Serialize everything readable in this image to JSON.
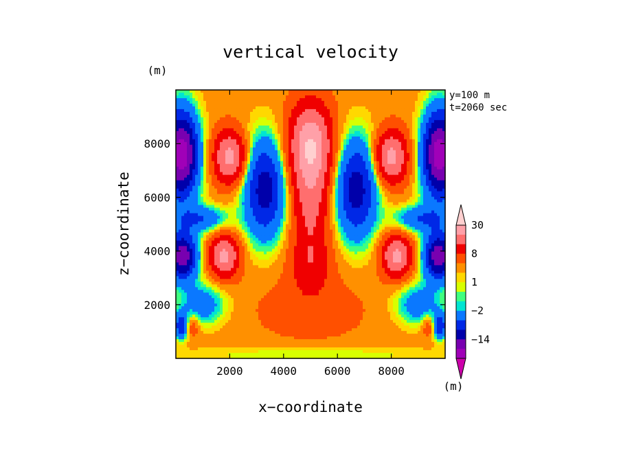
{
  "chart_data": {
    "type": "heatmap",
    "title": "vertical velocity",
    "xlabel": "x−coordinate",
    "ylabel": "z−coordinate",
    "y_unit": "(m)",
    "colorbar_unit": "(m)",
    "annotations": [
      "y=100 m",
      "t=2060 sec"
    ],
    "xlim": [
      0,
      10000
    ],
    "ylim": [
      0,
      10000
    ],
    "x_ticks": [
      2000,
      4000,
      6000,
      8000
    ],
    "x_tick_labels": [
      "2000",
      "4000",
      "6000",
      "8000"
    ],
    "y_ticks": [
      2000,
      4000,
      6000,
      8000
    ],
    "y_tick_labels": [
      "2000",
      "4000",
      "6000",
      "8000"
    ],
    "colorbar": {
      "levels": [
        -22,
        -18,
        -14,
        -10,
        -6,
        -2,
        -1,
        0,
        1,
        2,
        4,
        8,
        14,
        22,
        30
      ],
      "colors": [
        "#cc00aa",
        "#a000b8",
        "#7800b0",
        "#0000aa",
        "#0028e6",
        "#0a78ff",
        "#00e5d2",
        "#40ff80",
        "#d8ff00",
        "#ffd800",
        "#ff9000",
        "#ff5000",
        "#f00000",
        "#ff6e6e",
        "#ffa0a8",
        "#ffd0d0"
      ],
      "tick_values": [
        30,
        8,
        1,
        -2,
        -14
      ],
      "tick_labels": [
        "30",
        "8",
        "1",
        "−2",
        "−14"
      ]
    },
    "field_features": [
      {
        "x": 5000,
        "z": 7500,
        "w": 30,
        "note": "central updraft core"
      },
      {
        "x": 5000,
        "z": 3500,
        "w": 12,
        "note": "central updraft stem"
      },
      {
        "x": 2000,
        "z": 7500,
        "w": 18,
        "note": "upper left updraft"
      },
      {
        "x": 8000,
        "z": 7500,
        "w": 18,
        "note": "upper right updraft"
      },
      {
        "x": 1800,
        "z": 3800,
        "w": 18,
        "note": "mid left updraft"
      },
      {
        "x": 8200,
        "z": 3800,
        "w": 18,
        "note": "mid right updraft"
      },
      {
        "x": 3300,
        "z": 6300,
        "w": -12,
        "note": "left downdraft"
      },
      {
        "x": 6700,
        "z": 6300,
        "w": -12,
        "note": "right downdraft"
      },
      {
        "x": 300,
        "z": 7500,
        "w": -20,
        "note": "left edge downdraft"
      },
      {
        "x": 9700,
        "z": 7500,
        "w": -20,
        "note": "right edge downdraft"
      },
      {
        "x": 300,
        "z": 3800,
        "w": -18,
        "note": "left edge lower downdraft"
      },
      {
        "x": 9700,
        "z": 3800,
        "w": -18,
        "note": "right edge lower downdraft"
      },
      {
        "x": 5000,
        "z": 1500,
        "w": 4,
        "note": "low level broad updraft"
      }
    ]
  }
}
